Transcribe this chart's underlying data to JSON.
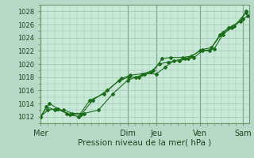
{
  "title": "",
  "xlabel": "Pression niveau de la mer( hPa )",
  "ylabel": "",
  "background_color": "#b8d8c8",
  "plot_bg_color": "#c8e8d8",
  "grid_color": "#a0c0b0",
  "line_color": "#1a6e1a",
  "marker_color": "#1a6e1a",
  "vline_color": "#3a7a3a",
  "ylim": [
    1011,
    1029
  ],
  "yticks": [
    1012,
    1014,
    1016,
    1018,
    1020,
    1022,
    1024,
    1026,
    1028
  ],
  "day_labels": [
    "Mer",
    "Dim",
    "Jeu",
    "Ven",
    "Sam"
  ],
  "day_positions": [
    0,
    3.0,
    4.0,
    5.5,
    7.0
  ],
  "vline_positions": [
    3.0,
    4.0,
    5.5,
    7.0
  ],
  "xlim": [
    0,
    7.2
  ],
  "line1_x": [
    0,
    0.2,
    0.5,
    0.8,
    1.1,
    1.5,
    2.0,
    2.5,
    3.0,
    3.3,
    3.6,
    4.0,
    4.3,
    4.6,
    5.0,
    5.3,
    5.6,
    6.0,
    6.3,
    6.7,
    7.1
  ],
  "line1_y": [
    1012.0,
    1013.5,
    1013.0,
    1013.0,
    1012.5,
    1012.5,
    1013.0,
    1015.5,
    1017.5,
    1018.0,
    1018.5,
    1018.5,
    1019.5,
    1020.5,
    1020.8,
    1021.0,
    1022.0,
    1022.3,
    1024.5,
    1025.8,
    1027.8
  ],
  "line2_x": [
    0,
    0.3,
    0.6,
    1.0,
    1.4,
    1.8,
    2.3,
    2.8,
    3.1,
    3.5,
    3.9,
    4.2,
    4.5,
    4.9,
    5.2,
    5.6,
    5.9,
    6.3,
    6.6,
    7.0,
    7.15
  ],
  "line2_y": [
    1012.0,
    1014.0,
    1013.2,
    1012.3,
    1012.3,
    1014.5,
    1016.0,
    1017.8,
    1018.3,
    1018.5,
    1019.0,
    1020.8,
    1021.0,
    1021.0,
    1021.2,
    1022.2,
    1022.5,
    1024.8,
    1025.5,
    1026.8,
    1027.3
  ],
  "line3_x": [
    0,
    0.25,
    0.55,
    0.9,
    1.3,
    1.7,
    2.2,
    2.7,
    3.05,
    3.4,
    3.8,
    4.1,
    4.4,
    4.8,
    5.1,
    5.5,
    5.85,
    6.2,
    6.5,
    6.9,
    7.1
  ],
  "line3_y": [
    1012.0,
    1013.0,
    1013.2,
    1012.5,
    1012.0,
    1014.5,
    1015.5,
    1017.5,
    1018.0,
    1018.0,
    1018.8,
    1020.0,
    1020.3,
    1020.5,
    1020.8,
    1022.0,
    1022.0,
    1024.5,
    1025.5,
    1026.5,
    1028.0
  ],
  "xlabel_fontsize": 7.5,
  "ytick_fontsize": 6.0,
  "xtick_fontsize": 7.0,
  "label_color": "#1a4a1a"
}
